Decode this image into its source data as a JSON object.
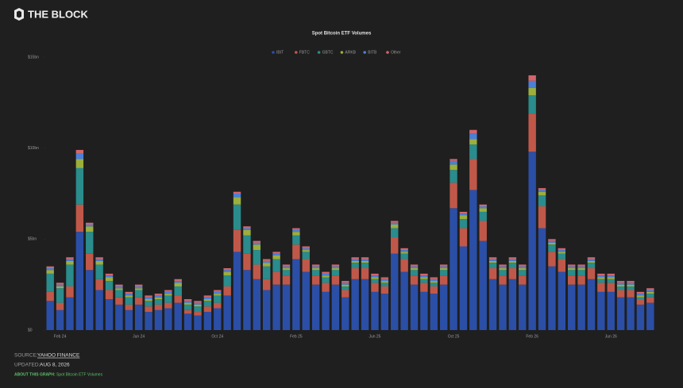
{
  "header": {
    "logo": "THE BLOCK"
  },
  "footer": {
    "source_label": "SOURCE:",
    "source": "YAHOO FINANCE",
    "updated_label": "UPDATED:",
    "updated": "AUG 8, 2026",
    "about_label": "ABOUT THIS GRAPH:",
    "about": "Spot Bitcoin ETF Volumes"
  },
  "chart_data": {
    "type": "stacked-bar",
    "title": "Spot Bitcoin ETF Volumes",
    "categories": [
      null,
      "Feb 24",
      null,
      null,
      null,
      null,
      null,
      null,
      null,
      "Jun 24",
      null,
      null,
      null,
      null,
      null,
      null,
      null,
      "Oct 24",
      null,
      null,
      null,
      null,
      null,
      null,
      null,
      "Feb 25",
      null,
      null,
      null,
      null,
      null,
      null,
      null,
      "Jun 25",
      null,
      null,
      null,
      null,
      null,
      null,
      null,
      "Oct 25",
      null,
      null,
      null,
      null,
      null,
      null,
      null,
      "Feb 26",
      null,
      null,
      null,
      null,
      null,
      null,
      null,
      "Jun 26",
      null,
      null,
      null,
      null
    ],
    "series": [
      {
        "name": "IBIT",
        "color": "#2b4fa6",
        "values": [
          1.6,
          1.1,
          1.8,
          5.4,
          3.3,
          2.2,
          1.7,
          1.4,
          1.1,
          1.4,
          1.0,
          1.1,
          1.2,
          1.5,
          0.9,
          0.8,
          1.0,
          1.2,
          1.9,
          4.3,
          3.3,
          2.8,
          2.2,
          2.5,
          2.5,
          3.9,
          3.2,
          2.5,
          2.1,
          2.5,
          1.8,
          2.8,
          2.8,
          2.1,
          2.0,
          4.2,
          3.2,
          2.5,
          2.1,
          2.0,
          2.5,
          6.7,
          4.6,
          7.7,
          4.9,
          2.8,
          2.5,
          2.8,
          2.5,
          9.8,
          5.6,
          3.5,
          3.2,
          2.5,
          2.5,
          2.8,
          2.1,
          2.1,
          1.8,
          1.8,
          1.4,
          1.5
        ]
      },
      {
        "name": "FBTC",
        "color": "#c0584a",
        "values": [
          0.5,
          0.4,
          0.6,
          1.5,
          0.9,
          0.6,
          0.5,
          0.4,
          0.3,
          0.4,
          0.3,
          0.3,
          0.3,
          0.4,
          0.2,
          0.2,
          0.3,
          0.3,
          0.5,
          1.2,
          0.9,
          0.8,
          0.6,
          0.7,
          0.5,
          0.8,
          0.7,
          0.5,
          0.5,
          0.5,
          0.4,
          0.6,
          0.6,
          0.5,
          0.4,
          0.9,
          0.7,
          0.5,
          0.5,
          0.4,
          0.5,
          1.4,
          1.0,
          1.7,
          1.1,
          0.6,
          0.5,
          0.6,
          0.5,
          2.1,
          1.2,
          0.8,
          0.7,
          0.5,
          0.5,
          0.6,
          0.5,
          0.5,
          0.4,
          0.4,
          0.3,
          0.3
        ]
      },
      {
        "name": "GBTC",
        "color": "#2a8c8c",
        "values": [
          1.0,
          0.8,
          1.2,
          2.0,
          1.2,
          0.8,
          0.5,
          0.4,
          0.4,
          0.4,
          0.3,
          0.3,
          0.4,
          0.5,
          0.3,
          0.3,
          0.3,
          0.4,
          0.6,
          1.4,
          1.0,
          0.8,
          0.7,
          0.7,
          0.3,
          0.5,
          0.4,
          0.3,
          0.3,
          0.3,
          0.2,
          0.3,
          0.3,
          0.2,
          0.2,
          0.5,
          0.3,
          0.3,
          0.2,
          0.2,
          0.3,
          0.7,
          0.5,
          0.8,
          0.5,
          0.3,
          0.3,
          0.3,
          0.3,
          1.0,
          0.6,
          0.4,
          0.3,
          0.3,
          0.3,
          0.3,
          0.2,
          0.2,
          0.2,
          0.2,
          0.1,
          0.2
        ]
      },
      {
        "name": "ARKB",
        "color": "#9cae3c",
        "values": [
          0.2,
          0.1,
          0.2,
          0.5,
          0.3,
          0.2,
          0.2,
          0.1,
          0.1,
          0.1,
          0.1,
          0.1,
          0.1,
          0.2,
          0.1,
          0.1,
          0.1,
          0.1,
          0.2,
          0.4,
          0.3,
          0.3,
          0.2,
          0.2,
          0.1,
          0.2,
          0.1,
          0.1,
          0.1,
          0.1,
          0.1,
          0.1,
          0.1,
          0.1,
          0.1,
          0.2,
          0.1,
          0.1,
          0.1,
          0.1,
          0.1,
          0.3,
          0.2,
          0.3,
          0.2,
          0.1,
          0.1,
          0.1,
          0.1,
          0.4,
          0.2,
          0.1,
          0.1,
          0.1,
          0.1,
          0.1,
          0.1,
          0.1,
          0.1,
          0.1,
          0.1,
          0.1
        ]
      },
      {
        "name": "BITB",
        "color": "#4a80d8",
        "values": [
          0.1,
          0.1,
          0.1,
          0.3,
          0.1,
          0.1,
          0.1,
          0.1,
          0.1,
          0.1,
          0.1,
          0.1,
          0.1,
          0.1,
          0.1,
          0.1,
          0.1,
          0.1,
          0.1,
          0.2,
          0.1,
          0.1,
          0.1,
          0.1,
          0.1,
          0.1,
          0.1,
          0.1,
          0.1,
          0.1,
          0.1,
          0.1,
          0.1,
          0.1,
          0.1,
          0.1,
          0.1,
          0.1,
          0.1,
          0.1,
          0.1,
          0.2,
          0.1,
          0.3,
          0.1,
          0.1,
          0.1,
          0.1,
          0.1,
          0.4,
          0.1,
          0.1,
          0.1,
          0.1,
          0.1,
          0.1,
          0.1,
          0.1,
          0.1,
          0.1,
          0.1,
          0.1
        ]
      },
      {
        "name": "Other",
        "color": "#d2666c",
        "values": [
          0.1,
          0.1,
          0.1,
          0.2,
          0.1,
          0.1,
          0.1,
          0.1,
          0.1,
          0.1,
          0.1,
          0.1,
          0.1,
          0.1,
          0.1,
          0.1,
          0.1,
          0.1,
          0.1,
          0.1,
          0.1,
          0.1,
          0.1,
          0.1,
          0.1,
          0.1,
          0.1,
          0.1,
          0.1,
          0.1,
          0.1,
          0.1,
          0.1,
          0.1,
          0.1,
          0.1,
          0.1,
          0.1,
          0.1,
          0.1,
          0.1,
          0.1,
          0.1,
          0.2,
          0.1,
          0.1,
          0.1,
          0.1,
          0.1,
          0.3,
          0.1,
          0.1,
          0.1,
          0.1,
          0.1,
          0.1,
          0.1,
          0.1,
          0.1,
          0.1,
          0.1,
          0.1
        ]
      }
    ],
    "ylim": [
      0,
      15
    ],
    "yticks": [
      {
        "value": 0,
        "label": "$0"
      },
      {
        "value": 5,
        "label": "$5bn"
      },
      {
        "value": 10,
        "label": "$10bn"
      },
      {
        "value": 15,
        "label": "$15bn"
      }
    ],
    "grid": false,
    "legend": "top"
  }
}
